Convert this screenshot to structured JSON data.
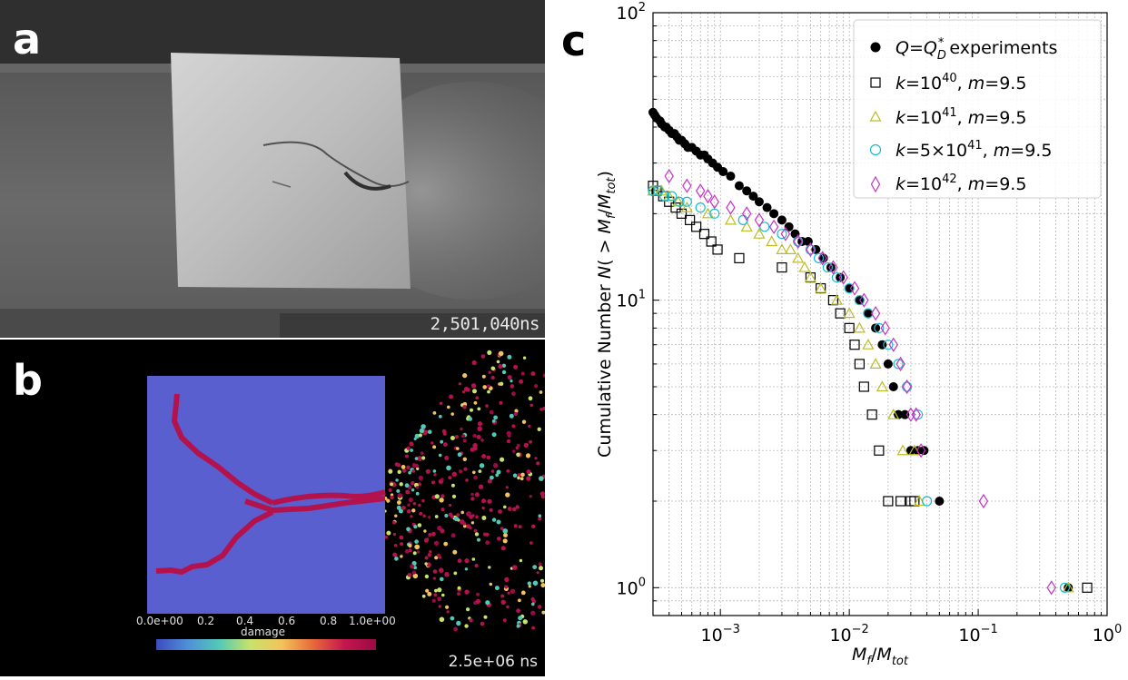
{
  "panels": {
    "a": {
      "letter": "a",
      "timestamp": "2,501,040ns"
    },
    "b": {
      "letter": "b",
      "timestamp": "2.5e+06 ns",
      "colorbar": {
        "title": "damage",
        "ticks": [
          "0.0e+00",
          "0.2",
          "0.4",
          "0.6",
          "0.8",
          "1.0e+00"
        ]
      }
    },
    "c": {
      "letter": "c"
    }
  },
  "chart_data": {
    "type": "scatter",
    "xscale": "log",
    "yscale": "log",
    "xlim": [
      0.0003,
      1
    ],
    "ylim": [
      0.8,
      100
    ],
    "xlabel_main": "M",
    "xlabel_sub1": "f",
    "xlabel_slash": "/",
    "xlabel_main2": "M",
    "xlabel_sub2": "tot",
    "ylabel_pre": "Cumulative Number ",
    "ylabel_N": "N",
    "ylabel_open": "( > ",
    "ylabel_M": "M",
    "ylabel_sub1": "f",
    "ylabel_slash": "/",
    "ylabel_M2": "M",
    "ylabel_sub2": "tot",
    "ylabel_close": ")",
    "xticks": [
      {
        "value": 0.001,
        "base": "10",
        "exp": "−3"
      },
      {
        "value": 0.01,
        "base": "10",
        "exp": "−2"
      },
      {
        "value": 0.1,
        "base": "10",
        "exp": "−1"
      },
      {
        "value": 1,
        "base": "10",
        "exp": "0"
      }
    ],
    "yticks": [
      {
        "value": 1,
        "base": "10",
        "exp": "0"
      },
      {
        "value": 10,
        "base": "10",
        "exp": "1"
      },
      {
        "value": 100,
        "base": "10",
        "exp": "2"
      }
    ],
    "legend_position": "top-right",
    "series": [
      {
        "name": "Q=Q_D^* experiments",
        "legend": {
          "a": "Q",
          "b": "=",
          "c": "Q",
          "sub": "D",
          "sup": "*",
          "d": " experiments"
        },
        "marker": "circle-filled",
        "color": "#000000",
        "x": [
          0.0003,
          0.00031,
          0.00032,
          0.00034,
          0.00035,
          0.00037,
          0.00038,
          0.0004,
          0.00042,
          0.00044,
          0.00046,
          0.00048,
          0.0005,
          0.00053,
          0.00056,
          0.0006,
          0.00065,
          0.0007,
          0.00075,
          0.0008,
          0.00087,
          0.00095,
          0.00105,
          0.0012,
          0.0014,
          0.0016,
          0.0018,
          0.002,
          0.0023,
          0.0026,
          0.003,
          0.0034,
          0.0038,
          0.0043,
          0.0048,
          0.0055,
          0.0063,
          0.0072,
          0.0085,
          0.01,
          0.012,
          0.014,
          0.016,
          0.018,
          0.02,
          0.022,
          0.024,
          0.027,
          0.03,
          0.034,
          0.038,
          0.05,
          0.5
        ],
        "y": [
          45,
          44,
          43,
          42,
          41,
          40,
          40,
          39,
          38,
          38,
          37,
          36,
          36,
          35,
          34,
          34,
          33,
          32,
          32,
          31,
          30,
          29,
          28,
          27,
          25,
          24,
          23,
          22,
          21,
          20,
          19,
          18,
          17,
          16,
          16,
          15,
          14,
          13,
          12,
          11,
          10,
          9,
          8,
          7,
          6,
          5,
          4,
          4,
          3,
          3,
          3,
          2,
          1
        ]
      },
      {
        "name": "k=10^40, m=9.5",
        "legend": {
          "a": "k",
          "b": "=10",
          "sup": "40",
          "c": ", ",
          "d": "m",
          "e": "=9.5"
        },
        "marker": "square-open",
        "color": "#000000",
        "x": [
          0.0003,
          0.00032,
          0.00036,
          0.0004,
          0.00045,
          0.0005,
          0.00058,
          0.00065,
          0.00075,
          0.00085,
          0.00095,
          0.0014,
          0.003,
          0.005,
          0.006,
          0.0075,
          0.0085,
          0.01,
          0.011,
          0.012,
          0.013,
          0.015,
          0.017,
          0.02,
          0.025,
          0.03,
          0.032,
          0.7
        ],
        "y": [
          25,
          24,
          23,
          22,
          21,
          20,
          19,
          18,
          17,
          16,
          15,
          14,
          13,
          12,
          11,
          10,
          9,
          8,
          7,
          6,
          5,
          4,
          3,
          2,
          2,
          2,
          2,
          1
        ]
      },
      {
        "name": "k=10^41, m=9.5",
        "legend": {
          "a": "k",
          "b": "=10",
          "sup": "41",
          "c": ", ",
          "d": "m",
          "e": "=9.5"
        },
        "marker": "triangle-open",
        "color": "#bcbc22",
        "x": [
          0.0003,
          0.00035,
          0.0004,
          0.00047,
          0.00055,
          0.0008,
          0.0012,
          0.0016,
          0.002,
          0.0025,
          0.003,
          0.0035,
          0.004,
          0.0045,
          0.005,
          0.006,
          0.008,
          0.01,
          0.012,
          0.014,
          0.016,
          0.018,
          0.022,
          0.026,
          0.032,
          0.035,
          0.5
        ],
        "y": [
          24,
          24,
          23,
          22,
          21,
          20,
          19,
          18,
          17,
          16,
          15,
          15,
          14,
          13,
          12,
          11,
          10,
          9,
          8,
          7,
          6,
          5,
          4,
          3,
          3,
          2,
          1
        ]
      },
      {
        "name": "k=5×10^41, m=9.5",
        "legend": {
          "a": "k",
          "b": "=5×10",
          "sup": "41",
          "c": ", ",
          "d": "m",
          "e": "=9.5"
        },
        "marker": "circle-open",
        "color": "#17becf",
        "x": [
          0.0003,
          0.00033,
          0.00037,
          0.00042,
          0.00048,
          0.00055,
          0.0007,
          0.0009,
          0.0015,
          0.0022,
          0.003,
          0.004,
          0.005,
          0.0058,
          0.0068,
          0.008,
          0.01,
          0.012,
          0.014,
          0.017,
          0.02,
          0.024,
          0.028,
          0.034,
          0.04,
          0.47
        ],
        "y": [
          24,
          24,
          23,
          23,
          22,
          22,
          21,
          20,
          19,
          18,
          17,
          16,
          15,
          14,
          13,
          12,
          11,
          10,
          9,
          8,
          7,
          6,
          5,
          4,
          2,
          1
        ]
      },
      {
        "name": "k=10^42, m=9.5",
        "legend": {
          "a": "k",
          "b": "=10",
          "sup": "42",
          "c": ", ",
          "d": "m",
          "e": "=9.5"
        },
        "marker": "diamond-open",
        "color": "#c830c8",
        "x": [
          0.0004,
          0.00055,
          0.0007,
          0.0008,
          0.0009,
          0.0012,
          0.0016,
          0.002,
          0.0026,
          0.0032,
          0.004,
          0.005,
          0.0062,
          0.0075,
          0.009,
          0.011,
          0.013,
          0.016,
          0.019,
          0.022,
          0.025,
          0.028,
          0.03,
          0.033,
          0.036,
          0.11,
          0.37
        ],
        "y": [
          27,
          25,
          24,
          23,
          22,
          21,
          20,
          19,
          18,
          17,
          16,
          15,
          14,
          13,
          12,
          11,
          10,
          9,
          8,
          7,
          6,
          5,
          4,
          4,
          3,
          2,
          1
        ]
      }
    ]
  }
}
